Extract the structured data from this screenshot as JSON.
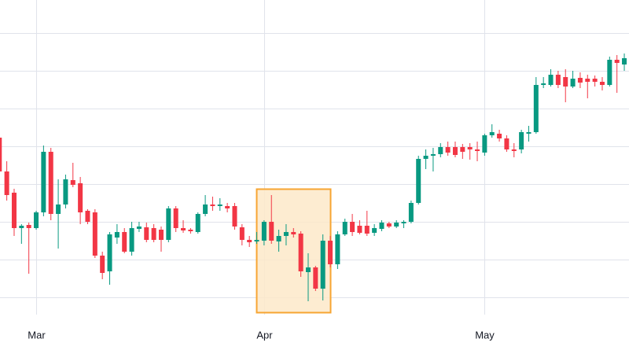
{
  "chart_data": {
    "type": "candlestick",
    "categories": [
      null,
      null,
      null,
      null,
      null,
      "Mar",
      null,
      null,
      null,
      null,
      null,
      null,
      null,
      null,
      null,
      null,
      null,
      null,
      null,
      null,
      null,
      null,
      null,
      null,
      null,
      null,
      null,
      null,
      null,
      null,
      null,
      null,
      null,
      null,
      null,
      null,
      "Apr",
      null,
      null,
      null,
      null,
      null,
      null,
      null,
      null,
      null,
      null,
      null,
      null,
      null,
      null,
      null,
      null,
      null,
      null,
      null,
      null,
      null,
      null,
      null,
      null,
      null,
      null,
      null,
      null,
      null,
      "May",
      null,
      null,
      null,
      null,
      null,
      null,
      null,
      null,
      null,
      null,
      null,
      null,
      null,
      null,
      null,
      null,
      null,
      null,
      null
    ],
    "open": [
      251,
      208,
      181,
      136,
      140,
      136,
      156,
      233,
      154,
      166,
      197,
      193,
      158,
      156,
      101,
      81,
      124,
      131,
      106,
      135,
      137,
      136,
      134,
      121,
      161,
      136,
      134,
      131,
      154,
      166,
      164,
      164,
      164,
      137,
      121,
      119,
      120,
      144,
      119,
      126,
      131,
      129,
      80,
      86,
      59,
      120,
      90,
      128,
      144,
      139,
      139,
      130,
      135,
      142,
      138,
      142,
      144,
      168,
      224,
      228,
      230,
      239,
      239,
      239,
      239,
      236,
      232,
      254,
      256,
      250,
      236,
      236,
      256,
      258,
      318,
      318,
      331,
      328,
      316,
      327,
      326,
      326,
      322,
      318,
      350,
      344
    ],
    "high": [
      261,
      221,
      186,
      141,
      143,
      158,
      241,
      238,
      198,
      204,
      219,
      201,
      160,
      160,
      106,
      131,
      141,
      136,
      144,
      144,
      143,
      141,
      138,
      164,
      164,
      146,
      136,
      156,
      178,
      176,
      174,
      168,
      168,
      141,
      126,
      131,
      146,
      178,
      134,
      141,
      136,
      132,
      104,
      88,
      128,
      126,
      132,
      148,
      154,
      146,
      158,
      141,
      146,
      144,
      146,
      146,
      171,
      228,
      236,
      238,
      244,
      246,
      246,
      243,
      244,
      246,
      256,
      268,
      261,
      254,
      244,
      261,
      266,
      328,
      328,
      338,
      336,
      338,
      336,
      334,
      331,
      330,
      328,
      354,
      356,
      358
    ],
    "low": [
      206,
      171,
      126,
      116,
      78,
      134,
      151,
      146,
      110,
      161,
      188,
      141,
      141,
      98,
      71,
      64,
      116,
      104,
      101,
      131,
      118,
      118,
      106,
      118,
      131,
      130,
      129,
      129,
      151,
      158,
      158,
      156,
      134,
      114,
      112,
      116,
      114,
      116,
      106,
      114,
      124,
      74,
      43,
      56,
      44,
      86,
      84,
      126,
      126,
      128,
      126,
      126,
      132,
      136,
      136,
      136,
      142,
      166,
      211,
      208,
      226,
      228,
      226,
      224,
      223,
      221,
      228,
      251,
      246,
      233,
      226,
      231,
      246,
      256,
      314,
      316,
      314,
      296,
      314,
      314,
      301,
      316,
      311,
      316,
      308,
      336
    ],
    "close": [
      208,
      178,
      136,
      139,
      136,
      156,
      233,
      154,
      166,
      198,
      191,
      156,
      144,
      101,
      79,
      128,
      131,
      106,
      136,
      138,
      121,
      121,
      121,
      161,
      136,
      133,
      132,
      154,
      166,
      164,
      166,
      161,
      138,
      121,
      118,
      121,
      144,
      120,
      126,
      131,
      128,
      81,
      86,
      59,
      120,
      90,
      128,
      144,
      131,
      130,
      129,
      136,
      143,
      138,
      143,
      144,
      168,
      224,
      228,
      230,
      239,
      232,
      229,
      233,
      236,
      234,
      254,
      258,
      250,
      236,
      234,
      258,
      258,
      318,
      320,
      331,
      318,
      316,
      326,
      321,
      322,
      322,
      318,
      350,
      346,
      352
    ],
    "up_color": "#089981",
    "down_color": "#f23645",
    "ylim": [
      0,
      432
    ],
    "ygrid": [
      48,
      96,
      144,
      192,
      240,
      288,
      336,
      384
    ],
    "grid": true
  }
}
